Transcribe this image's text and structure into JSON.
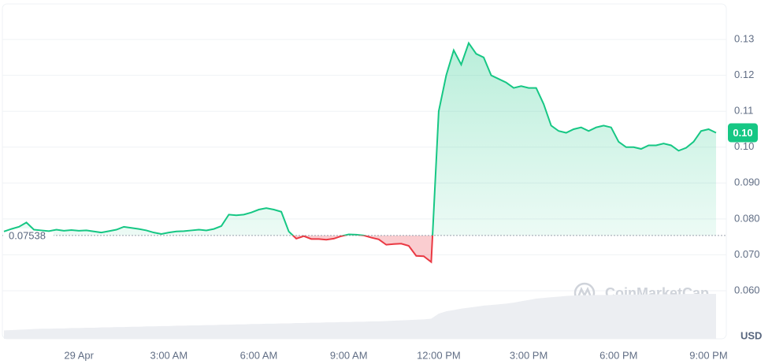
{
  "chart_data": {
    "type": "line",
    "categories": [
      null,
      null,
      null,
      null,
      null,
      null,
      null,
      null,
      null,
      null,
      "29 Apr",
      null,
      null,
      null,
      null,
      null,
      null,
      null,
      null,
      null,
      null,
      null,
      "3:00 AM",
      null,
      null,
      null,
      null,
      null,
      null,
      null,
      null,
      null,
      null,
      null,
      "6:00 AM",
      null,
      null,
      null,
      null,
      null,
      null,
      null,
      null,
      null,
      null,
      null,
      "9:00 AM",
      null,
      null,
      null,
      null,
      null,
      null,
      null,
      null,
      null,
      null,
      null,
      "12:00 PM",
      null,
      null,
      null,
      null,
      null,
      null,
      null,
      null,
      null,
      null,
      null,
      "3:00 PM",
      null,
      null,
      null,
      null,
      null,
      null,
      null,
      null,
      null,
      null,
      null,
      "6:00 PM",
      null,
      null,
      null,
      null,
      null,
      null,
      null,
      null,
      null,
      null,
      null,
      "9:00 PM",
      null
    ],
    "values": [
      0.0765,
      0.0772,
      0.0778,
      0.079,
      0.077,
      0.0768,
      0.0766,
      0.077,
      0.0767,
      0.0769,
      0.0767,
      0.0768,
      0.0765,
      0.0762,
      0.0766,
      0.077,
      0.0778,
      0.0775,
      0.0772,
      0.0768,
      0.0762,
      0.0758,
      0.0762,
      0.0765,
      0.0766,
      0.0768,
      0.077,
      0.0768,
      0.0772,
      0.078,
      0.0812,
      0.081,
      0.0812,
      0.0818,
      0.0826,
      0.083,
      0.0826,
      0.082,
      0.0765,
      0.0745,
      0.0752,
      0.0744,
      0.0744,
      0.0742,
      0.0745,
      0.0752,
      0.0757,
      0.0756,
      0.0754,
      0.0748,
      0.0743,
      0.0728,
      0.073,
      0.0731,
      0.0725,
      0.0697,
      0.0696,
      0.068,
      0.11,
      0.12,
      0.127,
      0.123,
      0.129,
      0.126,
      0.125,
      0.12,
      0.119,
      0.118,
      0.1165,
      0.117,
      0.1165,
      0.1165,
      0.112,
      0.106,
      0.1045,
      0.104,
      0.105,
      0.1055,
      0.1045,
      0.1055,
      0.106,
      0.1055,
      0.1015,
      0.1,
      0.1,
      0.0995,
      0.1005,
      0.1005,
      0.101,
      0.1005,
      0.099,
      0.0998,
      0.1015,
      0.1045,
      0.105,
      0.104
    ],
    "color_up": "#16c784",
    "color_down": "#ea3943",
    "baseline": 0.07538,
    "current_price_label": "0.10",
    "volume": {
      "axis": "y2",
      "color": "#eceef2",
      "values": [
        2.5,
        2.6,
        2.7,
        2.8,
        2.9,
        3.0,
        3.0,
        3.1,
        3.1,
        3.2,
        3.2,
        3.3,
        3.3,
        3.4,
        3.4,
        3.5,
        3.5,
        3.6,
        3.6,
        3.7,
        3.7,
        3.8,
        3.8,
        3.9,
        3.9,
        4.0,
        4.0,
        4.1,
        4.1,
        4.2,
        4.2,
        4.3,
        4.3,
        4.4,
        4.4,
        4.5,
        4.5,
        4.6,
        4.6,
        4.7,
        4.7,
        4.8,
        4.8,
        4.9,
        4.9,
        5.0,
        5.0,
        5.1,
        5.1,
        5.2,
        5.2,
        5.3,
        5.4,
        5.5,
        5.6,
        5.7,
        5.8,
        6.0,
        7.5,
        8.2,
        8.6,
        9.0,
        9.3,
        9.6,
        9.9,
        10.1,
        10.3,
        10.5,
        10.8,
        11.2,
        11.6,
        12.0,
        12.2,
        12.4,
        12.6,
        12.8,
        12.9,
        13.0,
        13.0,
        13.1,
        13.1,
        13.1,
        13.2,
        13.2,
        13.2,
        13.2,
        13.3,
        13.3,
        13.3,
        13.3,
        13.3,
        13.4,
        13.4,
        13.4,
        13.4,
        13.4
      ]
    },
    "ylim": [
      0.0466,
      0.1399
    ],
    "yticks": [
      {
        "value": 0.06,
        "label": "0.060"
      },
      {
        "value": 0.07,
        "label": "0.070"
      },
      {
        "value": 0.08,
        "label": "0.080"
      },
      {
        "value": 0.09,
        "label": "0.090"
      },
      {
        "value": 0.1,
        "label": "0.10"
      },
      0.11,
      0.12,
      0.13
    ],
    "y2lim": [
      0,
      100
    ],
    "y_unit": "USD",
    "watermark": "CoinMarketCap",
    "grid": true
  }
}
